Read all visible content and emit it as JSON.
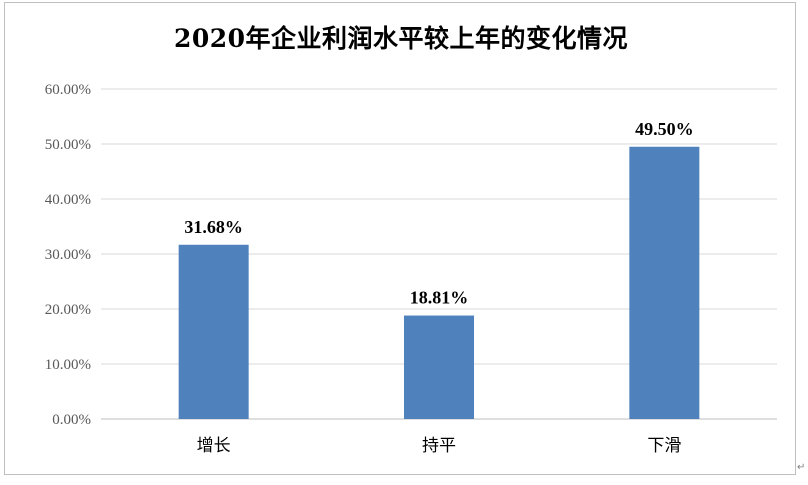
{
  "chart_data": {
    "type": "bar",
    "title": "2020年企业利润水平较上年的变化情况",
    "categories": [
      "增长",
      "持平",
      "下滑"
    ],
    "values": [
      31.68,
      18.81,
      49.5
    ],
    "value_labels": [
      "31.68%",
      "18.81%",
      "49.50%"
    ],
    "ylim": [
      0,
      60
    ],
    "yticks": [
      0,
      10,
      20,
      30,
      40,
      50,
      60
    ],
    "ytick_labels": [
      "0.00%",
      "10.00%",
      "20.00%",
      "30.00%",
      "40.00%",
      "50.00%",
      "60.00%"
    ],
    "xlabel": "",
    "ylabel": "",
    "grid": true,
    "legend": "none",
    "bar_color": "#4f81bd",
    "grid_color": "#d9d9d9",
    "axis_color": "#bfbfbf"
  },
  "corner_glyph": "↵"
}
